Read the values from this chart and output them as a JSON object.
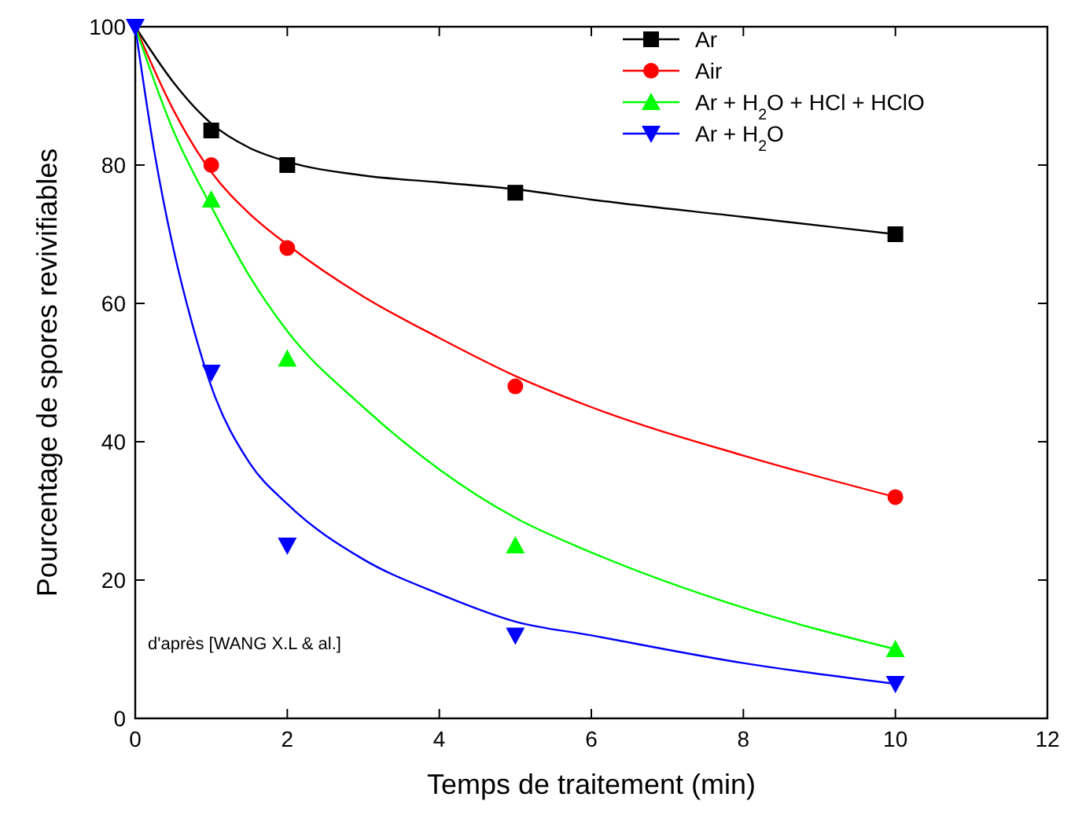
{
  "chart_data": {
    "type": "scatter",
    "xlabel": "Temps de traitement (min)",
    "ylabel": "Pourcentage de spores revivifiables",
    "xlim": [
      0,
      12
    ],
    "ylim": [
      0,
      100
    ],
    "xticks": [
      0,
      2,
      4,
      6,
      8,
      10,
      12
    ],
    "yticks": [
      0,
      20,
      40,
      60,
      80,
      100
    ],
    "grid": false,
    "legend": "top right",
    "annotations": [
      "d'après [WANG X.L & al.]"
    ],
    "series": [
      {
        "name": "Ar",
        "marker": "square",
        "color": "#000000",
        "x": [
          1,
          2,
          5,
          10
        ],
        "values": [
          85,
          80,
          76,
          70
        ]
      },
      {
        "name": "Air",
        "marker": "circle",
        "color": "#ff0000",
        "x": [
          1,
          2,
          5,
          10
        ],
        "values": [
          80,
          68,
          48,
          32
        ]
      },
      {
        "name": "Ar + H$_{2}$O + HCl + HClO",
        "marker": "triangle",
        "color": "#00ff00",
        "x": [
          1,
          2,
          5,
          10
        ],
        "values": [
          75,
          52,
          25,
          10
        ]
      },
      {
        "name": "Ar + H$_{2}$O",
        "marker": "triangle-down",
        "color": "#0000ff",
        "x": [
          0,
          1,
          2,
          5,
          10
        ],
        "values": [
          100,
          50,
          25,
          12,
          5
        ]
      },
      {
        "type": "line",
        "color": "#000000",
        "x": [
          0,
          0.5,
          1,
          1.5,
          2,
          3,
          4,
          5,
          6,
          8,
          10
        ],
        "values": [
          100,
          92,
          86,
          82.5,
          80.5,
          78.5,
          77.5,
          76.5,
          75,
          72.5,
          70
        ]
      },
      {
        "type": "line",
        "color": "#ff0000",
        "x": [
          0,
          0.5,
          1,
          1.5,
          2,
          3,
          4,
          5,
          6,
          8,
          10
        ],
        "values": [
          100,
          88,
          79,
          73,
          68.5,
          61,
          55,
          49.5,
          45,
          38,
          32
        ]
      },
      {
        "type": "line",
        "color": "#00ff00",
        "x": [
          0,
          0.5,
          1,
          1.5,
          2,
          3,
          4,
          5,
          6,
          8,
          10
        ],
        "values": [
          100,
          85,
          74,
          64,
          56,
          45,
          36,
          29,
          24,
          16,
          10
        ]
      },
      {
        "type": "line",
        "color": "#0000ff",
        "x": [
          0,
          0.25,
          0.5,
          0.75,
          1,
          1.5,
          2,
          3,
          4,
          5,
          6,
          8,
          10
        ],
        "values": [
          100,
          82,
          68,
          57,
          48,
          37,
          31,
          23,
          18,
          14,
          12,
          8,
          5
        ]
      }
    ]
  }
}
